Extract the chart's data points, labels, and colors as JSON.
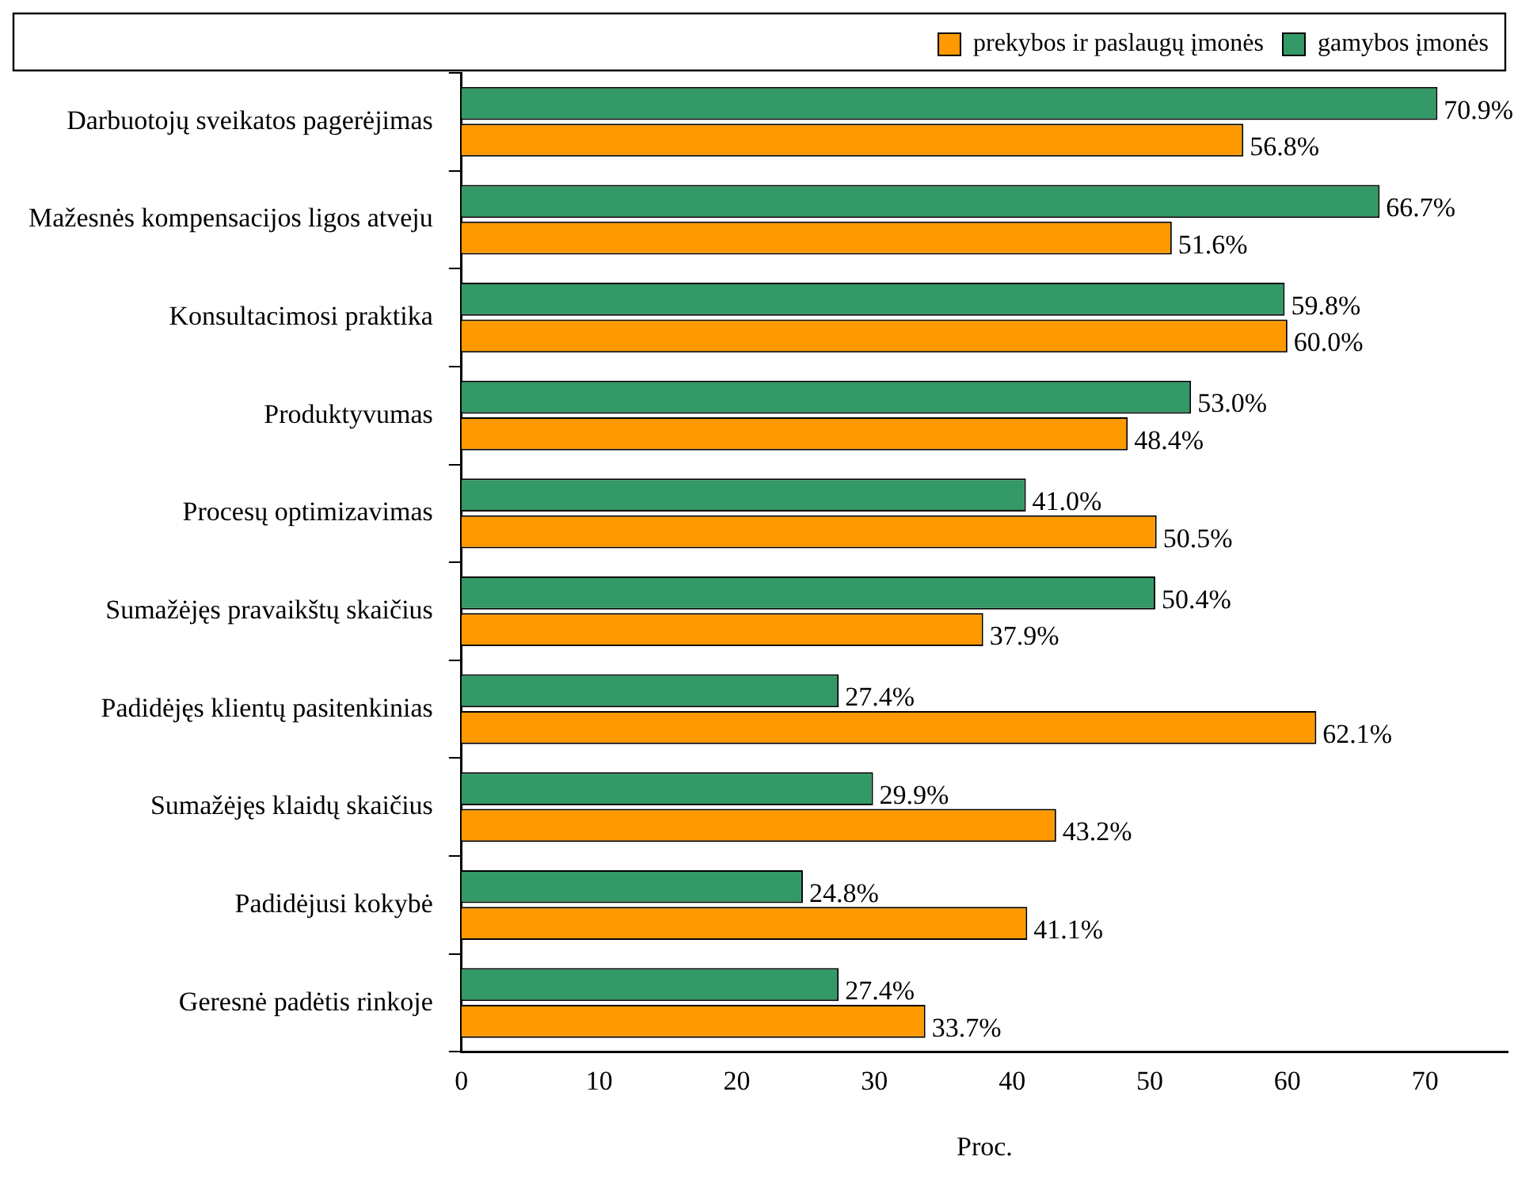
{
  "chart_data": {
    "type": "bar",
    "orientation": "horizontal",
    "xlabel": "Proc.",
    "categories": [
      "Darbuotojų sveikatos pagerėjimas",
      "Mažesnės kompensacijos ligos atveju",
      "Konsultacimosi praktika",
      "Produktyvumas",
      "Procesų optimizavimas",
      "Sumažėjęs pravaikštų skaičius",
      "Padidėjęs klientų pasitenkinias",
      "Sumažėjęs klaidų skaičius",
      "Padidėjusi kokybė",
      "Geresnė padėtis rinkoje"
    ],
    "series": [
      {
        "name": "prekybos ir paslaugų įmonės",
        "color": "#ff9900",
        "values": [
          56.8,
          51.6,
          60.0,
          48.4,
          50.5,
          37.9,
          62.1,
          43.2,
          41.1,
          33.7
        ],
        "value_labels": [
          "56.8%",
          "51.6%",
          "60.0%",
          "48.4%",
          "50.5%",
          "37.9%",
          "62.1%",
          "43.2%",
          "41.1%",
          "33.7%"
        ]
      },
      {
        "name": "gamybos įmonės",
        "color": "#339966",
        "values": [
          70.9,
          66.7,
          59.8,
          53.0,
          41.0,
          50.4,
          27.4,
          29.9,
          24.8,
          27.4
        ],
        "value_labels": [
          "70.9%",
          "66.7%",
          "59.8%",
          "53.0%",
          "41.0%",
          "50.4%",
          "27.4%",
          "29.9%",
          "24.8%",
          "27.4%"
        ]
      }
    ],
    "xlim": [
      0,
      76
    ],
    "xticks": [
      0,
      10,
      20,
      30,
      40,
      50,
      60,
      70
    ],
    "grid": false,
    "legend": "top right"
  }
}
